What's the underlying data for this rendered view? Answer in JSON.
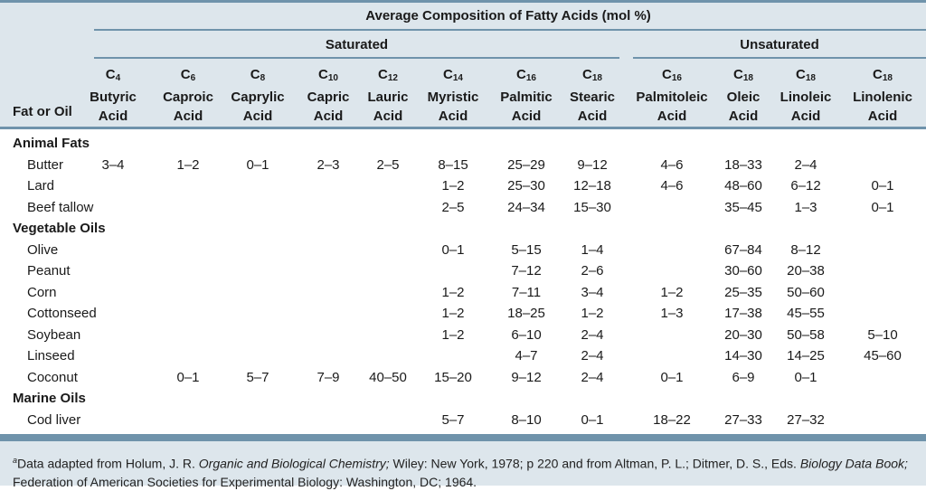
{
  "table": {
    "super_header": "Average Composition of Fatty Acids (mol %)",
    "group_saturated": "Saturated",
    "group_unsaturated": "Unsaturated",
    "fat_header": "Fat or Oil",
    "columns": [
      {
        "carbon": "C",
        "sub": "4",
        "name1": "Butyric",
        "name2": "Acid"
      },
      {
        "carbon": "C",
        "sub": "6",
        "name1": "Caproic",
        "name2": "Acid"
      },
      {
        "carbon": "C",
        "sub": "8",
        "name1": "Caprylic",
        "name2": "Acid"
      },
      {
        "carbon": "C",
        "sub": "10",
        "name1": "Capric",
        "name2": "Acid"
      },
      {
        "carbon": "C",
        "sub": "12",
        "name1": "Lauric",
        "name2": "Acid"
      },
      {
        "carbon": "C",
        "sub": "14",
        "name1": "Myristic",
        "name2": "Acid"
      },
      {
        "carbon": "C",
        "sub": "16",
        "name1": "Palmitic",
        "name2": "Acid"
      },
      {
        "carbon": "C",
        "sub": "18",
        "name1": "Stearic",
        "name2": "Acid"
      },
      {
        "carbon": "C",
        "sub": "16",
        "name1": "Palmitoleic",
        "name2": "Acid"
      },
      {
        "carbon": "C",
        "sub": "18",
        "name1": "Oleic",
        "name2": "Acid"
      },
      {
        "carbon": "C",
        "sub": "18",
        "name1": "Linoleic",
        "name2": "Acid"
      },
      {
        "carbon": "C",
        "sub": "18",
        "name1": "Linolenic",
        "name2": "Acid"
      }
    ],
    "sections": [
      {
        "title": "Animal Fats",
        "rows": [
          {
            "name": "Butter",
            "values": [
              "3–4",
              "1–2",
              "0–1",
              "2–3",
              "2–5",
              "8–15",
              "25–29",
              "9–12",
              "4–6",
              "18–33",
              "2–4",
              ""
            ]
          },
          {
            "name": "Lard",
            "values": [
              "",
              "",
              "",
              "",
              "",
              "1–2",
              "25–30",
              "12–18",
              "4–6",
              "48–60",
              "6–12",
              "0–1"
            ]
          },
          {
            "name": "Beef tallow",
            "values": [
              "",
              "",
              "",
              "",
              "",
              "2–5",
              "24–34",
              "15–30",
              "",
              "35–45",
              "1–3",
              "0–1"
            ]
          }
        ]
      },
      {
        "title": "Vegetable Oils",
        "rows": [
          {
            "name": "Olive",
            "values": [
              "",
              "",
              "",
              "",
              "",
              "0–1",
              "5–15",
              "1–4",
              "",
              "67–84",
              "8–12",
              ""
            ]
          },
          {
            "name": "Peanut",
            "values": [
              "",
              "",
              "",
              "",
              "",
              "",
              "7–12",
              "2–6",
              "",
              "30–60",
              "20–38",
              ""
            ]
          },
          {
            "name": "Corn",
            "values": [
              "",
              "",
              "",
              "",
              "",
              "1–2",
              "7–11",
              "3–4",
              "1–2",
              "25–35",
              "50–60",
              ""
            ]
          },
          {
            "name": "Cottonseed",
            "values": [
              "",
              "",
              "",
              "",
              "",
              "1–2",
              "18–25",
              "1–2",
              "1–3",
              "17–38",
              "45–55",
              ""
            ]
          },
          {
            "name": "Soybean",
            "values": [
              "",
              "",
              "",
              "",
              "",
              "1–2",
              "6–10",
              "2–4",
              "",
              "20–30",
              "50–58",
              "5–10"
            ]
          },
          {
            "name": "Linseed",
            "values": [
              "",
              "",
              "",
              "",
              "",
              "",
              "4–7",
              "2–4",
              "",
              "14–30",
              "14–25",
              "45–60"
            ]
          },
          {
            "name": "Coconut",
            "values": [
              "",
              "0–1",
              "5–7",
              "7–9",
              "40–50",
              "15–20",
              "9–12",
              "2–4",
              "0–1",
              "6–9",
              "0–1",
              ""
            ]
          }
        ]
      },
      {
        "title": "Marine Oils",
        "rows": [
          {
            "name": "Cod liver",
            "values": [
              "",
              "",
              "",
              "",
              "",
              "5–7",
              "8–10",
              "0–1",
              "18–22",
              "27–33",
              "27–32",
              ""
            ]
          }
        ]
      }
    ]
  },
  "footnote": {
    "marker": "a",
    "text_1": "Data adapted from Holum, J. R. ",
    "book_1": "Organic and Biological Chemistry;",
    "text_2": " Wiley: New York, 1978; p 220 and from Altman, P. L.; Ditmer, D. S., Eds. ",
    "book_2": "Biology Data Book;",
    "text_3": " Federation of American Societies for Experimental Biology: Washington, DC; 1964."
  }
}
